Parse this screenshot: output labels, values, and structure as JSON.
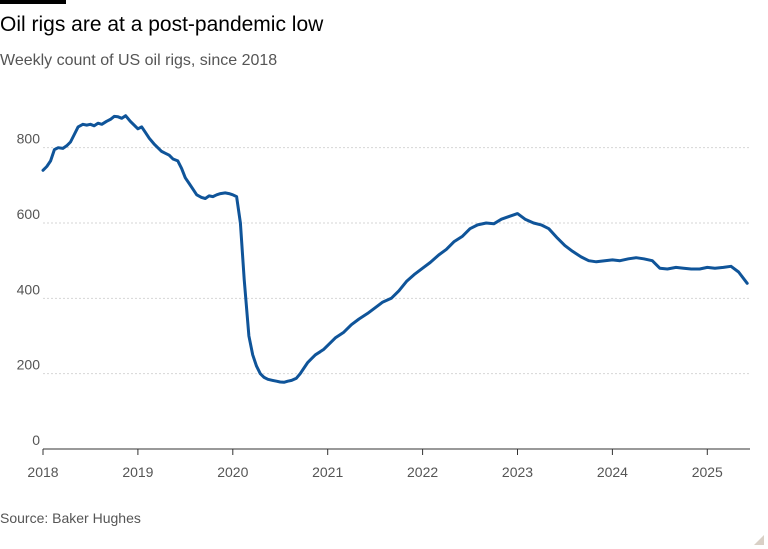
{
  "header": {
    "title": "Oil rigs are at a post-pandemic low",
    "subtitle": "Weekly count of US oil rigs, since 2018"
  },
  "footer": {
    "source": "Source: Baker Hughes"
  },
  "colors": {
    "line": "#0f5499",
    "grid": "#d6d6d6",
    "axis": "#333333",
    "text_muted": "#555555"
  },
  "chart_data": {
    "type": "line",
    "title": "Oil rigs are at a post-pandemic low",
    "subtitle": "Weekly count of US oil rigs, since 2018",
    "xlabel": "",
    "ylabel": "",
    "xlim": [
      2018.0,
      2025.45
    ],
    "ylim": [
      0,
      900
    ],
    "grid": true,
    "legend": "none",
    "x_ticks": [
      2018,
      2019,
      2020,
      2021,
      2022,
      2023,
      2024,
      2025
    ],
    "x_tick_labels": [
      "2018",
      "2019",
      "2020",
      "2021",
      "2022",
      "2023",
      "2024",
      "2025"
    ],
    "y_ticks": [
      0,
      200,
      400,
      600,
      800
    ],
    "y_tick_labels": [
      "0",
      "200",
      "400",
      "600",
      "800"
    ],
    "series": [
      {
        "x": [
          2018.0,
          2018.04,
          2018.08,
          2018.12,
          2018.16,
          2018.21,
          2018.25,
          2018.29,
          2018.33,
          2018.37,
          2018.42,
          2018.46,
          2018.5,
          2018.54,
          2018.58,
          2018.62,
          2018.67,
          2018.71,
          2018.75,
          2018.79,
          2018.83,
          2018.87,
          2018.92,
          2018.96,
          2019.0,
          2019.04,
          2019.08,
          2019.12,
          2019.17,
          2019.21,
          2019.25,
          2019.29,
          2019.33,
          2019.37,
          2019.42,
          2019.46,
          2019.5,
          2019.54,
          2019.58,
          2019.62,
          2019.67,
          2019.71,
          2019.75,
          2019.79,
          2019.83,
          2019.87,
          2019.92,
          2019.96,
          2020.0,
          2020.04,
          2020.08,
          2020.12,
          2020.17,
          2020.21,
          2020.25,
          2020.29,
          2020.33,
          2020.37,
          2020.42,
          2020.46,
          2020.5,
          2020.54,
          2020.58,
          2020.62,
          2020.67,
          2020.71,
          2020.75,
          2020.79,
          2020.83,
          2020.87,
          2020.92,
          2020.96,
          2021.0,
          2021.08,
          2021.17,
          2021.25,
          2021.33,
          2021.42,
          2021.5,
          2021.58,
          2021.67,
          2021.75,
          2021.83,
          2021.92,
          2022.0,
          2022.08,
          2022.17,
          2022.25,
          2022.33,
          2022.42,
          2022.5,
          2022.58,
          2022.67,
          2022.75,
          2022.83,
          2022.92,
          2023.0,
          2023.08,
          2023.17,
          2023.25,
          2023.33,
          2023.42,
          2023.5,
          2023.58,
          2023.67,
          2023.75,
          2023.83,
          2023.92,
          2024.0,
          2024.08,
          2024.17,
          2024.25,
          2024.33,
          2024.42,
          2024.5,
          2024.58,
          2024.67,
          2024.75,
          2024.83,
          2024.92,
          2025.0,
          2025.08,
          2025.17,
          2025.25,
          2025.33,
          2025.42
        ],
        "values": [
          740,
          750,
          765,
          795,
          800,
          798,
          805,
          815,
          835,
          855,
          862,
          860,
          862,
          858,
          865,
          862,
          870,
          875,
          883,
          882,
          878,
          885,
          870,
          860,
          850,
          855,
          840,
          825,
          810,
          800,
          790,
          785,
          780,
          770,
          765,
          745,
          720,
          705,
          690,
          675,
          668,
          665,
          672,
          670,
          675,
          678,
          680,
          678,
          675,
          670,
          600,
          450,
          300,
          250,
          220,
          200,
          190,
          185,
          182,
          180,
          178,
          177,
          180,
          182,
          188,
          200,
          215,
          230,
          240,
          250,
          258,
          265,
          275,
          295,
          310,
          330,
          345,
          360,
          375,
          390,
          400,
          420,
          445,
          465,
          480,
          495,
          515,
          530,
          550,
          565,
          585,
          595,
          600,
          598,
          610,
          618,
          625,
          610,
          600,
          595,
          585,
          560,
          540,
          525,
          510,
          500,
          497,
          500,
          502,
          500,
          505,
          508,
          505,
          500,
          480,
          478,
          482,
          480,
          478,
          478,
          482,
          480,
          482,
          485,
          470,
          440
        ]
      }
    ]
  }
}
